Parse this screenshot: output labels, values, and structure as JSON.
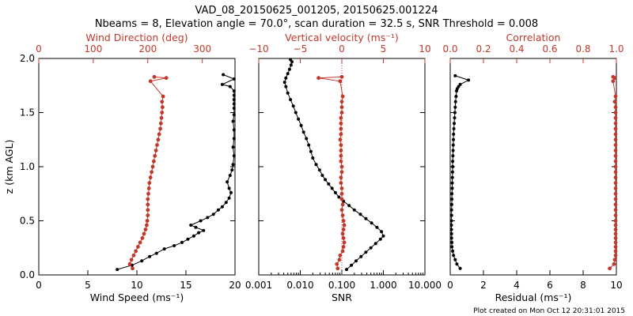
{
  "title_line1": "VAD_08_20150625_001205, 20150625.001224",
  "title_line2": "Nbeams = 8, Elevation angle = 70.0°, scan duration = 32.5 s, SNR Threshold = 0.008",
  "footer": "Plot created on Mon Oct 12 20:31:01 2015",
  "colors": {
    "black_series": "#000000",
    "red_series": "#c0392b"
  },
  "chart_data": [
    {
      "type": "line",
      "ylabel": "z (km AGL)",
      "ylim": [
        0,
        2.0
      ],
      "yticks": [
        0.0,
        0.5,
        1.0,
        1.5,
        2.0
      ],
      "yticklabels": [
        "0.0",
        "0.5",
        "1.0",
        "1.5",
        "2.0"
      ],
      "bottom_axis": {
        "label": "Wind Speed (ms⁻¹)",
        "lim": [
          0,
          20
        ],
        "ticks": [
          0,
          5,
          10,
          15,
          20
        ],
        "ticklabels": [
          "0",
          "5",
          "10",
          "15",
          "20"
        ],
        "scale": "linear"
      },
      "top_axis": {
        "label": "Wind Direction (deg)",
        "lim": [
          0,
          360
        ],
        "ticks": [
          0,
          100,
          200,
          300
        ],
        "ticklabels": [
          "0",
          "100",
          "200",
          "300"
        ],
        "scale": "linear"
      },
      "series": [
        {
          "axis": "bottom",
          "color": "#000000",
          "x": [
            8.0,
            9.5,
            10.5,
            11.3,
            12.0,
            12.8,
            13.8,
            14.6,
            15.2,
            15.8,
            16.3,
            16.8,
            16.0,
            15.5,
            16.5,
            17.2,
            17.8,
            18.3,
            18.7,
            19.1,
            19.4,
            19.6,
            19.4,
            19.2,
            19.5,
            19.7,
            19.8,
            19.9,
            19.8,
            19.9,
            19.9,
            19.8,
            19.9,
            19.9,
            19.9,
            19.9,
            19.9,
            19.9,
            19.5,
            18.7,
            19.9,
            18.8
          ],
          "y": [
            0.05,
            0.09,
            0.13,
            0.17,
            0.2,
            0.24,
            0.27,
            0.3,
            0.33,
            0.36,
            0.39,
            0.41,
            0.44,
            0.46,
            0.5,
            0.53,
            0.56,
            0.6,
            0.63,
            0.67,
            0.71,
            0.76,
            0.8,
            0.86,
            0.92,
            0.97,
            1.02,
            1.1,
            1.18,
            1.26,
            1.34,
            1.42,
            1.48,
            1.54,
            1.58,
            1.62,
            1.66,
            1.7,
            1.74,
            1.76,
            1.81,
            1.85
          ]
        },
        {
          "axis": "top",
          "color": "#c0392b",
          "x": [
            172,
            167,
            170,
            174,
            178,
            182,
            186,
            190,
            193,
            196,
            198,
            199,
            200,
            200,
            200,
            200,
            201,
            202,
            203,
            205,
            207,
            209,
            211,
            213,
            215,
            217,
            219,
            221,
            223,
            224,
            225,
            226,
            227,
            226,
            228,
            205,
            234,
            212
          ],
          "y": [
            0.06,
            0.1,
            0.14,
            0.18,
            0.22,
            0.26,
            0.3,
            0.34,
            0.38,
            0.42,
            0.46,
            0.5,
            0.55,
            0.6,
            0.65,
            0.7,
            0.75,
            0.8,
            0.85,
            0.9,
            0.95,
            1.0,
            1.05,
            1.1,
            1.15,
            1.2,
            1.25,
            1.3,
            1.35,
            1.4,
            1.45,
            1.5,
            1.55,
            1.6,
            1.65,
            1.79,
            1.82,
            1.83
          ]
        }
      ]
    },
    {
      "type": "line",
      "ylim": [
        0,
        2.0
      ],
      "bottom_axis": {
        "label": "SNR",
        "lim": [
          0.001,
          10
        ],
        "ticks": [
          0.001,
          0.01,
          0.1,
          1,
          10
        ],
        "ticklabels": [
          "0.001",
          "0.010",
          "0.100",
          "1.000",
          "10.000"
        ],
        "scale": "log"
      },
      "top_axis": {
        "label": "Vertical velocity (ms⁻¹)",
        "lim": [
          -10,
          10
        ],
        "ticks": [
          -10,
          -5,
          0,
          5,
          10
        ],
        "ticklabels": [
          "−10",
          "−5",
          "0",
          "5",
          "10"
        ],
        "scale": "linear"
      },
      "series": [
        {
          "axis": "bottom",
          "color": "#000000",
          "scale": "log",
          "x": [
            0.13,
            0.17,
            0.22,
            0.29,
            0.38,
            0.5,
            0.65,
            0.85,
            1.0,
            0.9,
            0.7,
            0.52,
            0.38,
            0.28,
            0.2,
            0.15,
            0.11,
            0.085,
            0.07,
            0.058,
            0.048,
            0.04,
            0.034,
            0.029,
            0.024,
            0.02,
            0.018,
            0.016,
            0.014,
            0.012,
            0.0105,
            0.009,
            0.0078,
            0.0068,
            0.0058,
            0.005,
            0.0045,
            0.0042,
            0.0045,
            0.005,
            0.0055,
            0.006,
            0.0063,
            0.0058
          ],
          "y": [
            0.05,
            0.09,
            0.13,
            0.17,
            0.21,
            0.25,
            0.29,
            0.33,
            0.36,
            0.4,
            0.44,
            0.48,
            0.52,
            0.56,
            0.6,
            0.64,
            0.68,
            0.72,
            0.76,
            0.8,
            0.84,
            0.88,
            0.92,
            0.97,
            1.02,
            1.08,
            1.14,
            1.2,
            1.26,
            1.32,
            1.38,
            1.44,
            1.5,
            1.56,
            1.62,
            1.68,
            1.74,
            1.78,
            1.82,
            1.86,
            1.9,
            1.94,
            1.97,
            1.99
          ]
        },
        {
          "axis": "top",
          "color": "#c0392b",
          "x": [
            -0.5,
            -0.6,
            -0.3,
            -0.2,
            0.1,
            0.2,
            0.3,
            0.2,
            0.1,
            0.2,
            0.3,
            0.2,
            0.1,
            0.0,
            0.1,
            0.0,
            0.0,
            0.0,
            -0.1,
            -0.1,
            0.0,
            0.0,
            -0.1,
            -0.1,
            -0.1,
            -0.1,
            -0.2,
            -0.1,
            -0.1,
            -0.1,
            -0.1,
            0.0,
            0.0,
            0.0,
            0.1,
            -0.2,
            -2.8,
            0.0
          ],
          "y": [
            0.06,
            0.1,
            0.14,
            0.18,
            0.22,
            0.26,
            0.3,
            0.34,
            0.38,
            0.42,
            0.46,
            0.5,
            0.55,
            0.6,
            0.65,
            0.7,
            0.75,
            0.8,
            0.85,
            0.9,
            0.95,
            1.0,
            1.05,
            1.1,
            1.15,
            1.2,
            1.25,
            1.3,
            1.35,
            1.4,
            1.45,
            1.5,
            1.55,
            1.6,
            1.65,
            1.79,
            1.82,
            1.83
          ]
        }
      ],
      "reference_line": {
        "axis": "top",
        "x": 0,
        "style": "dotted",
        "color": "#c0392b"
      }
    },
    {
      "type": "line",
      "ylim": [
        0,
        2.0
      ],
      "bottom_axis": {
        "label": "Residual (ms⁻¹)",
        "lim": [
          0,
          10
        ],
        "ticks": [
          0,
          2,
          4,
          6,
          8,
          10
        ],
        "ticklabels": [
          "0",
          "2",
          "4",
          "6",
          "8",
          "10"
        ],
        "scale": "linear"
      },
      "top_axis": {
        "label": "Correlation",
        "lim": [
          0,
          1.0
        ],
        "ticks": [
          0,
          0.2,
          0.4,
          0.6,
          0.8,
          1.0
        ],
        "ticklabels": [
          "0.0",
          "0.2",
          "0.4",
          "0.6",
          "0.8",
          "1.0"
        ],
        "scale": "linear"
      },
      "series": [
        {
          "axis": "bottom",
          "color": "#000000",
          "x": [
            0.6,
            0.4,
            0.3,
            0.2,
            0.15,
            0.1,
            0.1,
            0.08,
            0.08,
            0.07,
            0.07,
            0.07,
            0.08,
            0.08,
            0.09,
            0.1,
            0.1,
            0.12,
            0.12,
            0.13,
            0.14,
            0.15,
            0.15,
            0.16,
            0.17,
            0.18,
            0.19,
            0.2,
            0.22,
            0.24,
            0.26,
            0.28,
            0.3,
            0.32,
            0.35,
            0.38,
            0.42,
            0.5,
            0.6,
            1.1,
            0.3
          ],
          "y": [
            0.06,
            0.1,
            0.14,
            0.18,
            0.22,
            0.26,
            0.3,
            0.34,
            0.38,
            0.42,
            0.46,
            0.5,
            0.55,
            0.6,
            0.65,
            0.7,
            0.75,
            0.8,
            0.85,
            0.9,
            0.95,
            1.0,
            1.05,
            1.1,
            1.15,
            1.2,
            1.25,
            1.3,
            1.35,
            1.4,
            1.45,
            1.5,
            1.55,
            1.6,
            1.65,
            1.7,
            1.72,
            1.74,
            1.76,
            1.8,
            1.84
          ]
        },
        {
          "axis": "top",
          "color": "#c0392b",
          "x": [
            0.96,
            0.985,
            0.99,
            0.995,
            0.995,
            0.995,
            0.995,
            0.995,
            0.995,
            0.995,
            0.995,
            0.995,
            0.995,
            0.995,
            0.995,
            0.995,
            0.995,
            0.995,
            0.995,
            0.995,
            0.995,
            0.995,
            0.995,
            0.995,
            0.995,
            0.995,
            0.995,
            0.995,
            0.995,
            0.995,
            0.995,
            0.995,
            0.995,
            0.99,
            0.995,
            0.98,
            0.99,
            0.98
          ],
          "y": [
            0.06,
            0.1,
            0.14,
            0.18,
            0.22,
            0.26,
            0.3,
            0.34,
            0.38,
            0.42,
            0.46,
            0.5,
            0.55,
            0.6,
            0.65,
            0.7,
            0.75,
            0.8,
            0.85,
            0.9,
            0.95,
            1.0,
            1.05,
            1.1,
            1.15,
            1.2,
            1.25,
            1.3,
            1.35,
            1.4,
            1.45,
            1.5,
            1.55,
            1.6,
            1.65,
            1.79,
            1.82,
            1.83
          ]
        }
      ]
    }
  ]
}
